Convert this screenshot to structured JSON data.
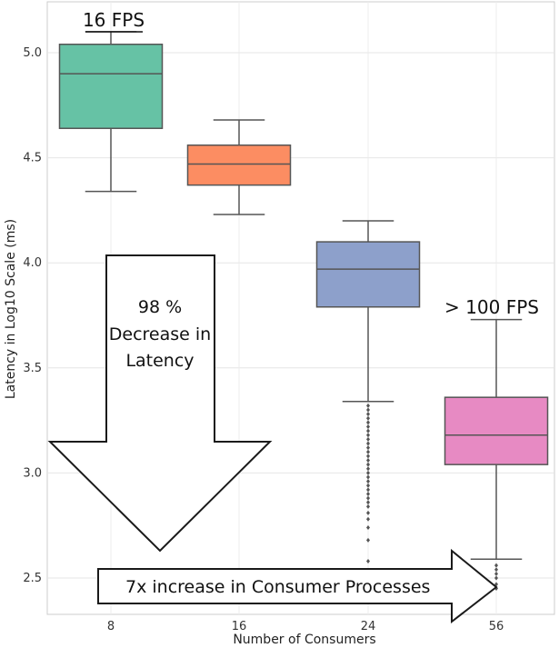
{
  "chart_data": {
    "type": "box",
    "xlabel": "Number of Consumers",
    "ylabel": "Latency in Log10 Scale (ms)",
    "ylim": [
      2.38,
      5.22
    ],
    "yticks": [
      2.5,
      3.0,
      3.5,
      4.0,
      4.5,
      5.0
    ],
    "ytick_labels": [
      "2.5",
      "3.0",
      "3.5",
      "4.0",
      "4.5",
      "5.0"
    ],
    "categories": [
      "8",
      "16",
      "24",
      "56"
    ],
    "boxes": [
      {
        "category": "8",
        "whisker_low": 4.34,
        "q1": 4.64,
        "median": 4.9,
        "q3": 5.04,
        "whisker_high": 5.1,
        "color": "#66c2a5",
        "outliers": []
      },
      {
        "category": "16",
        "whisker_low": 4.23,
        "q1": 4.37,
        "median": 4.47,
        "q3": 4.56,
        "whisker_high": 4.68,
        "color": "#fc8d62",
        "outliers": []
      },
      {
        "category": "24",
        "whisker_low": 3.34,
        "q1": 3.79,
        "median": 3.97,
        "q3": 4.1,
        "whisker_high": 4.2,
        "color": "#8da0cb",
        "outliers": [
          3.32,
          3.3,
          3.28,
          3.26,
          3.24,
          3.22,
          3.2,
          3.18,
          3.16,
          3.14,
          3.12,
          3.1,
          3.08,
          3.06,
          3.04,
          3.02,
          3.0,
          2.98,
          2.96,
          2.94,
          2.92,
          2.9,
          2.88,
          2.86,
          2.84,
          2.81,
          2.78,
          2.74,
          2.68,
          2.58
        ]
      },
      {
        "category": "56",
        "whisker_low": 2.59,
        "q1": 3.04,
        "median": 3.18,
        "q3": 3.36,
        "whisker_high": 3.73,
        "color": "#e78ac3",
        "outliers": [
          2.56,
          2.54,
          2.52,
          2.5,
          2.47,
          2.45
        ]
      }
    ],
    "grid": true,
    "annotations": {
      "top_left": "16 FPS",
      "right": "> 100 FPS",
      "down_arrow_lines": [
        "98 %",
        "Decrease in",
        "Latency"
      ],
      "right_arrow": "7x increase in Consumer Processes"
    }
  }
}
